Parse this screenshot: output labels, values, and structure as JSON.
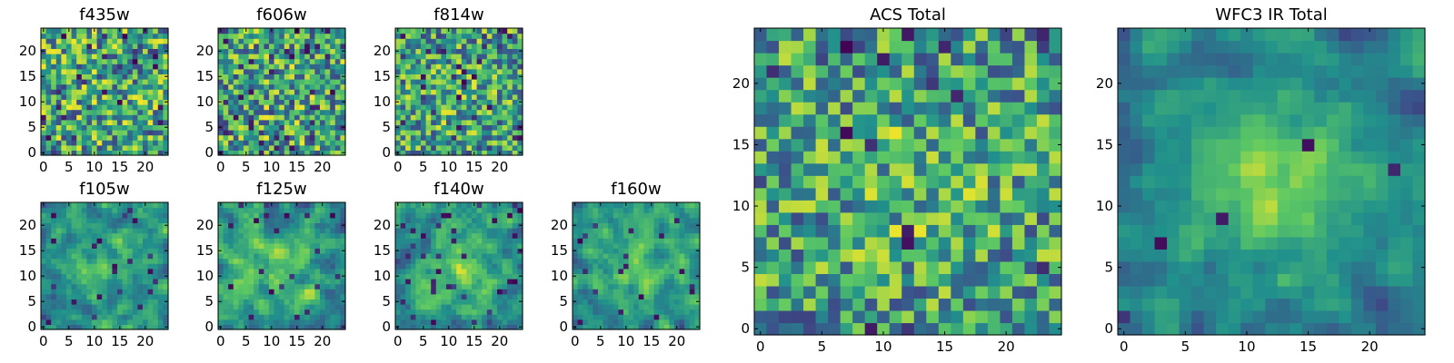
{
  "colormap": [
    "#440154",
    "#3b528b",
    "#21918c",
    "#5ec962",
    "#fde725"
  ],
  "chart_data": [
    {
      "type": "heatmap",
      "title": "f435w",
      "grid_size": 25,
      "xticks": [
        "0",
        "5",
        "10",
        "15",
        "20"
      ],
      "yticks": [
        "0",
        "5",
        "10",
        "15",
        "20"
      ],
      "xlim": [
        0,
        25
      ],
      "ylim": [
        0,
        25
      ],
      "grid": false,
      "seed": 11,
      "smooth": 0,
      "peak_gain": 0.02,
      "dark_fraction": 0.05
    },
    {
      "type": "heatmap",
      "title": "f606w",
      "grid_size": 25,
      "xticks": [
        "0",
        "5",
        "10",
        "15",
        "20"
      ],
      "yticks": [
        "0",
        "5",
        "10",
        "15",
        "20"
      ],
      "xlim": [
        0,
        25
      ],
      "ylim": [
        0,
        25
      ],
      "grid": false,
      "seed": 23,
      "smooth": 0,
      "peak_gain": 0.04,
      "dark_fraction": 0.06
    },
    {
      "type": "heatmap",
      "title": "f814w",
      "grid_size": 25,
      "xticks": [
        "0",
        "5",
        "10",
        "15",
        "20"
      ],
      "yticks": [
        "0",
        "5",
        "10",
        "15",
        "20"
      ],
      "xlim": [
        0,
        25
      ],
      "ylim": [
        0,
        25
      ],
      "grid": false,
      "seed": 37,
      "smooth": 0,
      "peak_gain": 0.08,
      "dark_fraction": 0.06
    },
    {
      "type": "heatmap",
      "title": "f105w",
      "grid_size": 25,
      "xticks": [
        "0",
        "5",
        "10",
        "15",
        "20"
      ],
      "yticks": [
        "0",
        "5",
        "10",
        "15",
        "20"
      ],
      "xlim": [
        0,
        25
      ],
      "ylim": [
        0,
        25
      ],
      "grid": false,
      "seed": 41,
      "smooth": 1,
      "peak_gain": 0.25,
      "dark_fraction": 0.04
    },
    {
      "type": "heatmap",
      "title": "f125w",
      "grid_size": 25,
      "xticks": [
        "0",
        "5",
        "10",
        "15",
        "20"
      ],
      "yticks": [
        "0",
        "5",
        "10",
        "15",
        "20"
      ],
      "xlim": [
        0,
        25
      ],
      "ylim": [
        0,
        25
      ],
      "grid": false,
      "seed": 53,
      "smooth": 1,
      "peak_gain": 0.2,
      "dark_fraction": 0.04
    },
    {
      "type": "heatmap",
      "title": "f140w",
      "grid_size": 25,
      "xticks": [
        "0",
        "5",
        "10",
        "15",
        "20"
      ],
      "yticks": [
        "0",
        "5",
        "10",
        "15",
        "20"
      ],
      "xlim": [
        0,
        25
      ],
      "ylim": [
        0,
        25
      ],
      "grid": false,
      "seed": 67,
      "smooth": 1,
      "peak_gain": 0.3,
      "dark_fraction": 0.04
    },
    {
      "type": "heatmap",
      "title": "f160w",
      "grid_size": 25,
      "xticks": [
        "0",
        "5",
        "10",
        "15",
        "20"
      ],
      "yticks": [
        "0",
        "5",
        "10",
        "15",
        "20"
      ],
      "xlim": [
        0,
        25
      ],
      "ylim": [
        0,
        25
      ],
      "grid": false,
      "seed": 79,
      "smooth": 1,
      "peak_gain": 0.28,
      "dark_fraction": 0.04
    },
    {
      "type": "heatmap",
      "title": "ACS Total",
      "grid_size": 25,
      "xticks": [
        "0",
        "5",
        "10",
        "15",
        "20"
      ],
      "yticks": [
        "0",
        "5",
        "10",
        "15",
        "20"
      ],
      "xlim": [
        0,
        25
      ],
      "ylim": [
        0,
        25
      ],
      "grid": false,
      "seed": 97,
      "smooth": 0,
      "peak_gain": 0.12,
      "dark_fraction": 0.03
    },
    {
      "type": "heatmap",
      "title": "WFC3 IR Total",
      "grid_size": 25,
      "xticks": [
        "0",
        "5",
        "10",
        "15",
        "20"
      ],
      "yticks": [
        "0",
        "5",
        "10",
        "15",
        "20"
      ],
      "xlim": [
        0,
        25
      ],
      "ylim": [
        0,
        25
      ],
      "grid": false,
      "seed": 113,
      "smooth": 1,
      "peak_gain": 0.45,
      "dark_fraction": 0.012
    }
  ]
}
